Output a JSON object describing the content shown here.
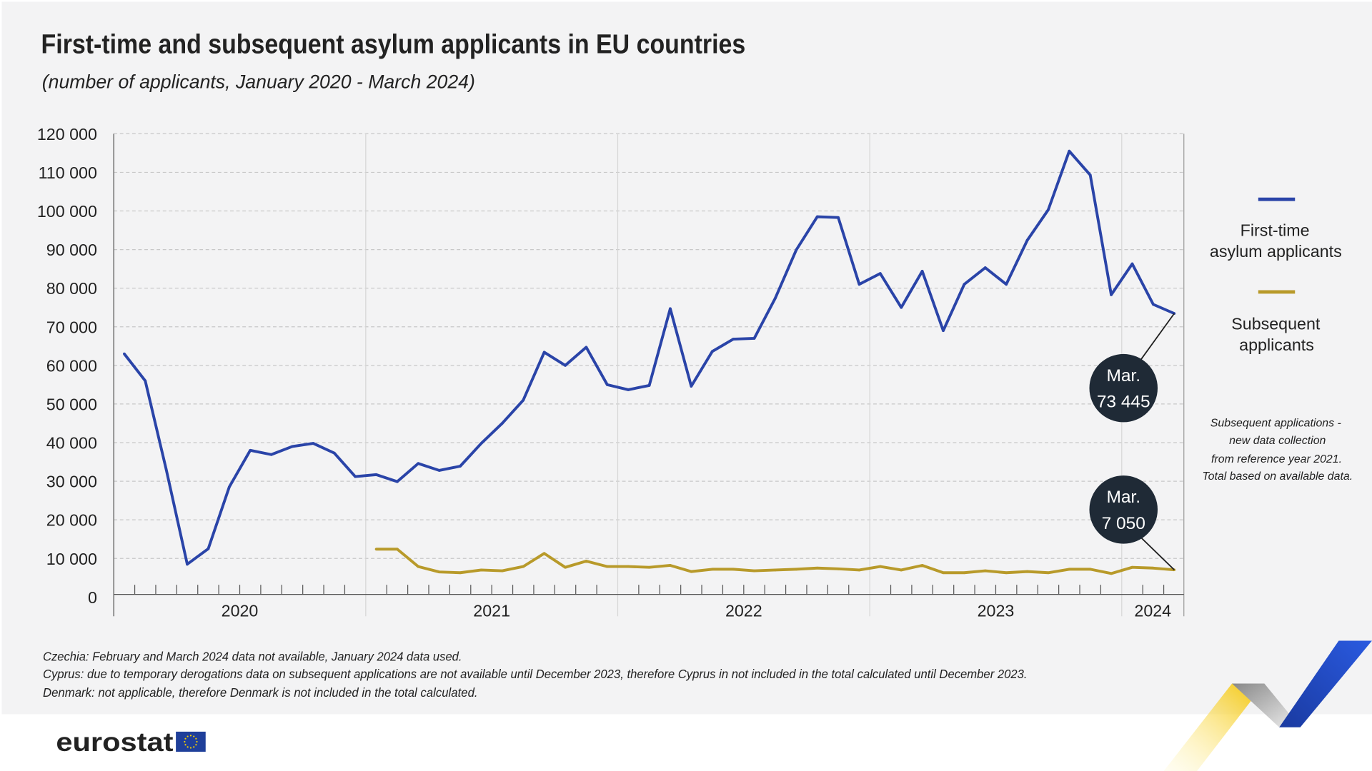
{
  "chart_data": {
    "type": "line",
    "title": "First-time and subsequent asylum applicants in EU countries",
    "subtitle": "(number of applicants, January 2020 - March 2024)",
    "x_start": "2020-01",
    "x_end": "2024-03",
    "x_tick_labels": [
      "2020",
      "2021",
      "2022",
      "2023",
      "2024"
    ],
    "y_tick_labels": [
      "0",
      "10 000",
      "20 000",
      "30 000",
      "40 000",
      "50 000",
      "60 000",
      "70 000",
      "80 000",
      "90 000",
      "100 000",
      "110 000",
      "120 000"
    ],
    "ylim": [
      0,
      120000
    ],
    "grid": true,
    "legend_position": "right",
    "series": [
      {
        "name": "First-time asylum applicants",
        "color": "#2a44a8",
        "start": "2020-01",
        "values": [
          63000,
          56000,
          33000,
          8500,
          12500,
          28500,
          38000,
          36900,
          39000,
          39800,
          37300,
          31200,
          31700,
          29900,
          34600,
          32800,
          33900,
          39800,
          45000,
          51000,
          63400,
          60000,
          64700,
          55000,
          53700,
          54800,
          74700,
          54600,
          63600,
          66800,
          67000,
          77400,
          89900,
          98500,
          98300,
          81000,
          83800,
          75000,
          84400,
          69000,
          81000,
          85300,
          81000,
          92400,
          100300,
          115500,
          109300,
          78300,
          86300,
          75800,
          73445
        ]
      },
      {
        "name": "Subsequent applicants",
        "color": "#b89a2a",
        "start": "2021-01",
        "values": [
          12400,
          12400,
          7900,
          6500,
          6300,
          7000,
          6800,
          7900,
          11300,
          7700,
          9300,
          7900,
          7900,
          7700,
          8200,
          6600,
          7200,
          7200,
          6800,
          7000,
          7200,
          7500,
          7300,
          7000,
          7900,
          7000,
          8200,
          6300,
          6300,
          6800,
          6300,
          6600,
          6300,
          7200,
          7200,
          6100,
          7700,
          7500,
          7050
        ]
      }
    ],
    "annotations": [
      {
        "series": "First-time asylum applicants",
        "line1": "Mar.",
        "line2": "73 445"
      },
      {
        "series": "Subsequent applicants",
        "line1": "Mar.",
        "line2": "7 050"
      }
    ],
    "legend_note": [
      "Subsequent applications -",
      "new data collection",
      "from reference year 2021.",
      "Total based on available data."
    ],
    "legend_labels": {
      "first": [
        "First-time",
        "asylum applicants"
      ],
      "subsequent": [
        "Subsequent",
        "applicants"
      ]
    }
  },
  "footnotes": [
    "Czechia: February and March 2024 data not available, January 2024 data used.",
    "Cyprus: due to temporary derogations data on subsequent applications are not available until December 2023, therefore Cyprus in not included in the total calculated until December 2023.",
    "Denmark: not applicable, therefore Denmark is not included in the total calculated."
  ],
  "brand": {
    "logo_text": "eurostat"
  }
}
